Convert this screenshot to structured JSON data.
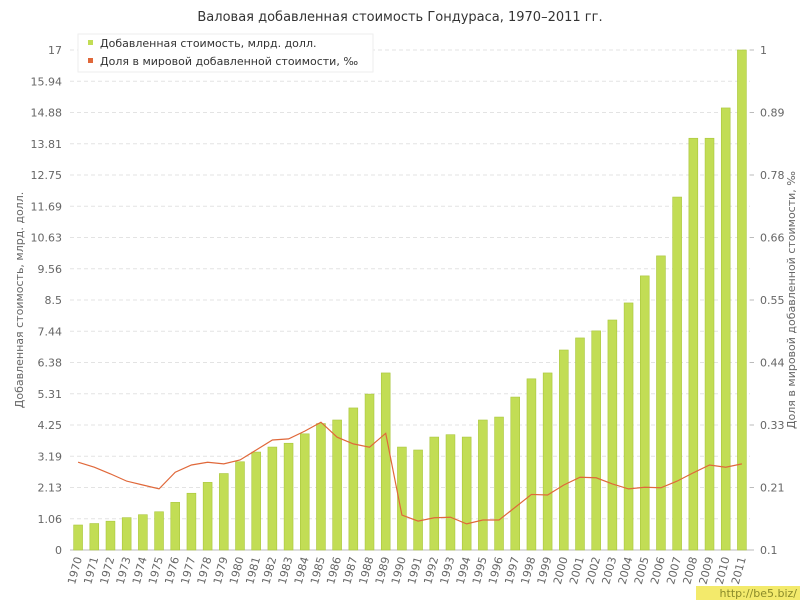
{
  "chart_data": {
    "type": "bar-line",
    "title": "Валовая добавленная стоимость Гондураса, 1970–2011 гг.",
    "y_label": "Добавленная стоимость, млрд. долл.",
    "y2_label": "Доля в мировой добавленной стоимости, ‰",
    "watermark": "http://be5.biz/",
    "grid": true,
    "legend": "top-left",
    "categories": [
      "1970",
      "1971",
      "1972",
      "1973",
      "1974",
      "1975",
      "1976",
      "1977",
      "1978",
      "1979",
      "1980",
      "1981",
      "1982",
      "1983",
      "1984",
      "1985",
      "1986",
      "1987",
      "1988",
      "1989",
      "1990",
      "1991",
      "1992",
      "1993",
      "1994",
      "1995",
      "1996",
      "1997",
      "1998",
      "1999",
      "2000",
      "2001",
      "2002",
      "2003",
      "2004",
      "2005",
      "2006",
      "2007",
      "2008",
      "2009",
      "2010",
      "2011"
    ],
    "series": [
      {
        "name": "Добавленная стоимость, млрд. долл.",
        "color": "#c2dd55",
        "kind": "bar",
        "values": [
          0.85,
          0.9,
          0.98,
          1.1,
          1.2,
          1.3,
          1.62,
          1.93,
          2.3,
          2.6,
          3.0,
          3.33,
          3.5,
          3.63,
          3.95,
          4.3,
          4.42,
          4.83,
          5.3,
          6.02,
          3.5,
          3.4,
          3.84,
          3.92,
          3.84,
          4.42,
          4.52,
          5.2,
          5.82,
          6.02,
          6.8,
          7.21,
          7.45,
          7.82,
          8.4,
          9.32,
          10.0,
          12.0,
          14.0,
          14.0,
          15.03,
          17.0
        ]
      },
      {
        "name": "Доля в мировой добавленной стоимости, ‰",
        "color": "#e0683a",
        "kind": "line",
        "axis": "y2",
        "values": [
          0.258,
          0.249,
          0.237,
          0.224,
          0.217,
          0.21,
          0.24,
          0.253,
          0.258,
          0.255,
          0.262,
          0.28,
          0.298,
          0.3,
          0.314,
          0.33,
          0.303,
          0.291,
          0.285,
          0.31,
          0.163,
          0.152,
          0.158,
          0.159,
          0.147,
          0.154,
          0.154,
          0.177,
          0.2,
          0.199,
          0.217,
          0.231,
          0.23,
          0.219,
          0.21,
          0.213,
          0.212,
          0.224,
          0.239,
          0.253,
          0.249,
          0.255
        ]
      }
    ],
    "ylim": [
      0,
      17
    ],
    "yticks": [
      0,
      {
        "value": 1.0625,
        "label": "1.06"
      },
      {
        "value": 2.125,
        "label": "2.13"
      },
      {
        "value": 3.1875,
        "label": "3.19"
      },
      4.25,
      {
        "value": 5.3125,
        "label": "5.31"
      },
      {
        "value": 6.375,
        "label": "6.38"
      },
      {
        "value": 7.4375,
        "label": "7.44"
      },
      8.5,
      {
        "value": 9.5625,
        "label": "9.56"
      },
      {
        "value": 10.625,
        "label": "10.63"
      },
      {
        "value": 11.6875,
        "label": "11.69"
      },
      12.75,
      {
        "value": 13.8125,
        "label": "13.81"
      },
      {
        "value": 14.875,
        "label": "14.88"
      },
      {
        "value": 15.9375,
        "label": "15.94"
      },
      17
    ],
    "y2lim": [
      0.1,
      1
    ],
    "y2ticks": [
      0.1,
      {
        "value": 0.2125,
        "label": "0.21"
      },
      {
        "value": 0.325,
        "label": "0.33"
      },
      {
        "value": 0.4375,
        "label": "0.44"
      },
      0.55,
      {
        "value": 0.6625,
        "label": "0.66"
      },
      {
        "value": 0.775,
        "label": "0.78"
      },
      {
        "value": 0.8875,
        "label": "0.89"
      },
      1
    ]
  }
}
